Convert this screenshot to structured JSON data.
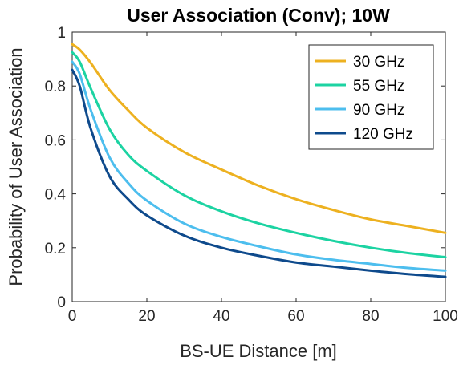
{
  "chart_data": {
    "type": "line",
    "title": "User Association (Conv); 10W",
    "xlabel": "BS-UE Distance [m]",
    "ylabel": "Probability of User Association",
    "xlim": [
      0,
      100
    ],
    "ylim": [
      0,
      1
    ],
    "xticks": [
      0,
      20,
      40,
      60,
      80,
      100
    ],
    "yticks": [
      0,
      0.2,
      0.4,
      0.6,
      0.8,
      1
    ],
    "ytick_labels": [
      "0",
      "0.2",
      "0.4",
      "0.6",
      "0.8",
      "1"
    ],
    "grid": false,
    "legend_position": "top-right",
    "x": [
      0,
      2,
      5,
      10,
      15,
      20,
      30,
      40,
      50,
      60,
      70,
      80,
      90,
      100
    ],
    "series": [
      {
        "name": "30 GHz",
        "color": "#EDB120",
        "values": [
          0.955,
          0.935,
          0.885,
          0.785,
          0.71,
          0.645,
          0.555,
          0.49,
          0.43,
          0.38,
          0.34,
          0.305,
          0.28,
          0.255
        ]
      },
      {
        "name": "55 GHz",
        "color": "#1CD3A2",
        "values": [
          0.925,
          0.89,
          0.79,
          0.64,
          0.545,
          0.485,
          0.395,
          0.335,
          0.29,
          0.255,
          0.225,
          0.2,
          0.18,
          0.165
        ]
      },
      {
        "name": "90 GHz",
        "color": "#4DBEEE",
        "values": [
          0.89,
          0.845,
          0.71,
          0.535,
          0.44,
          0.375,
          0.29,
          0.24,
          0.205,
          0.175,
          0.155,
          0.14,
          0.125,
          0.115
        ]
      },
      {
        "name": "120 GHz",
        "color": "#0E4A8C",
        "values": [
          0.86,
          0.8,
          0.64,
          0.465,
          0.38,
          0.32,
          0.245,
          0.2,
          0.17,
          0.145,
          0.13,
          0.115,
          0.102,
          0.092
        ]
      }
    ]
  }
}
